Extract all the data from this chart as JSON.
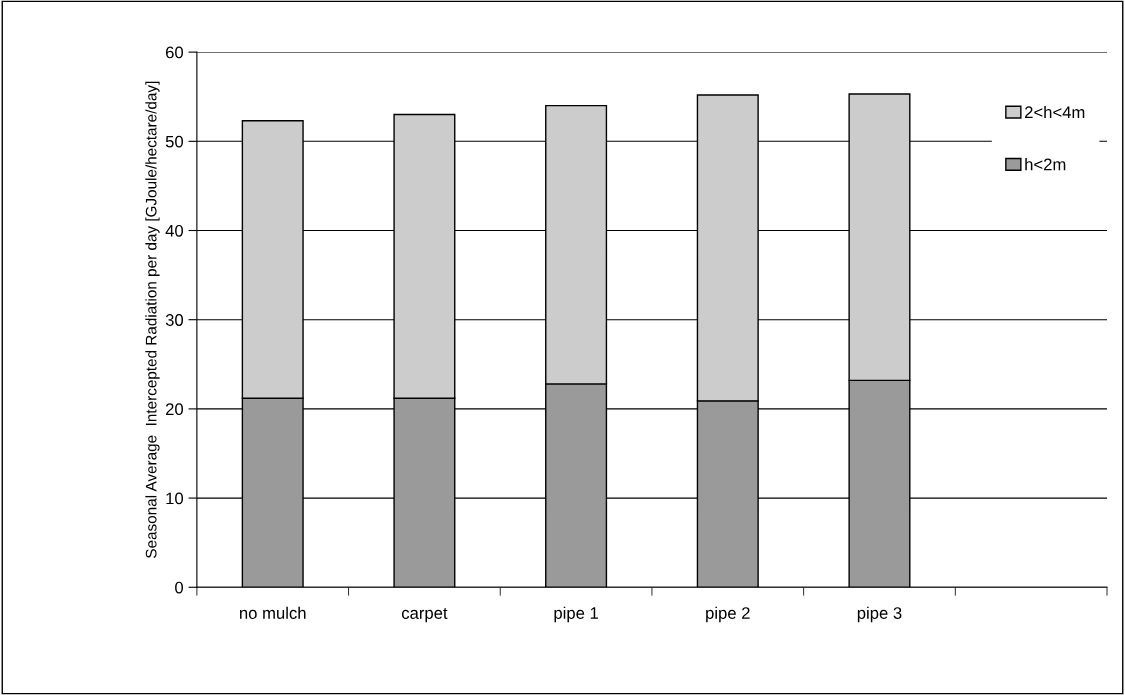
{
  "chart_data": {
    "type": "bar",
    "stacked": true,
    "ylabel": "Seasonal Average  Intercepted Radiation per day [GJoule/hectare/day]",
    "categories": [
      "no mulch",
      "carpet",
      "pipe 1",
      "pipe 2",
      "pipe 3",
      null
    ],
    "series": [
      {
        "name": "h<2m",
        "color": "#9a9a9a",
        "values": [
          21.2,
          21.2,
          22.8,
          20.9,
          23.2,
          null
        ]
      },
      {
        "name": "2<h<4m",
        "color": "#cccccc",
        "values": [
          31.1,
          31.8,
          31.2,
          34.3,
          32.1,
          null
        ]
      }
    ],
    "ylim": [
      0,
      60
    ],
    "yticks": [
      0,
      10,
      20,
      30,
      40,
      50,
      60
    ],
    "grid": "y",
    "legend": "right"
  }
}
